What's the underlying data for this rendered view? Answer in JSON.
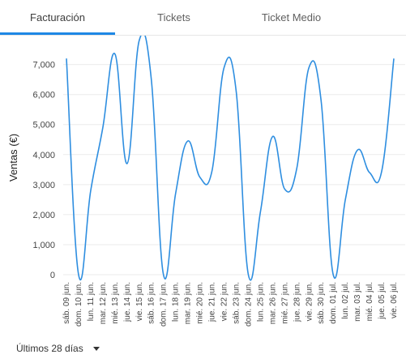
{
  "tabs": [
    {
      "label": "Facturación",
      "active": true
    },
    {
      "label": "Tickets",
      "active": false
    },
    {
      "label": "Ticket Medio",
      "active": false
    }
  ],
  "accent_color": "#1e88e5",
  "line_color": "#2e8ee0",
  "period_selector": {
    "label": "Últimos 28 días",
    "icon": "caret-down-icon"
  },
  "chart_data": {
    "type": "line",
    "ylabel": "Ventas (€)",
    "xlabel": "",
    "ylim": [
      0,
      7800
    ],
    "yticks": [
      0,
      1000,
      2000,
      3000,
      4000,
      5000,
      6000,
      7000
    ],
    "ytick_labels": [
      "0",
      "1,000",
      "2,000",
      "3,000",
      "4,000",
      "5,000",
      "6,000",
      "7,000"
    ],
    "grid": true,
    "categories": [
      "sáb. 09 jun.",
      "dom. 10 jun.",
      "lun. 11 jun.",
      "mar. 12 jun.",
      "mié. 13 jun.",
      "jue. 14 jun.",
      "vie. 15 jun.",
      "sáb. 16 jun.",
      "dom. 17 jun.",
      "lun. 18 jun.",
      "mar. 19 jun.",
      "mié. 20 jun.",
      "jue. 21 jun.",
      "vie. 22 jun.",
      "sáb. 23 jun.",
      "dom. 24 jun.",
      "lun. 25 jun.",
      "mar. 26 jun.",
      "mié. 27 jun.",
      "jue. 28 jun.",
      "vie. 29 jun.",
      "sáb. 30 jun.",
      "dom. 01 jul.",
      "lun. 02 jul.",
      "mar. 03 jul.",
      "mié. 04 jul.",
      "jue. 05 jul.",
      "vie. 06 jul."
    ],
    "series": [
      {
        "values": [
          7200,
          0,
          2800,
          4900,
          7350,
          3700,
          7800,
          6500,
          0,
          2700,
          4450,
          3250,
          3450,
          6900,
          6100,
          0,
          2100,
          4600,
          2850,
          3550,
          6900,
          5800,
          0,
          2500,
          4150,
          3400,
          3450,
          7200
        ]
      }
    ]
  }
}
